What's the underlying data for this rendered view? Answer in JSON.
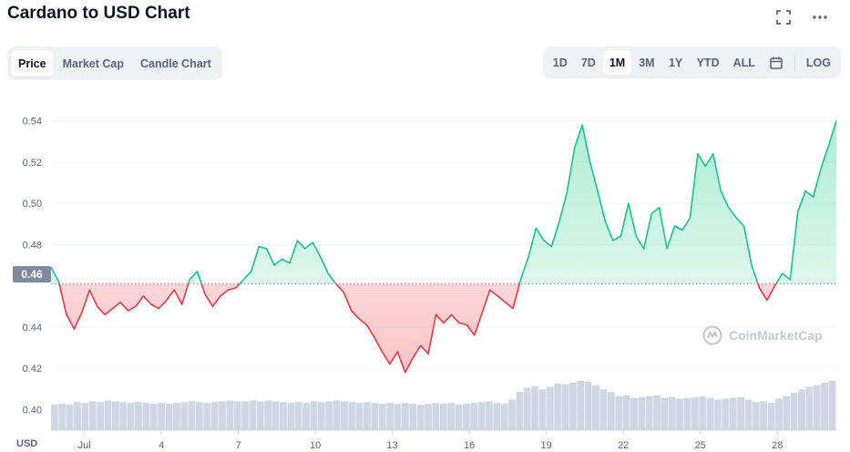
{
  "header": {
    "title": "Cardano to USD Chart",
    "fullscreen_icon": "expand-icon",
    "more_icon": "more-horizontal-icon"
  },
  "tabs": [
    {
      "label": "Price",
      "active": true
    },
    {
      "label": "Market Cap",
      "active": false
    },
    {
      "label": "Candle Chart",
      "active": false
    }
  ],
  "ranges": [
    {
      "label": "1D",
      "active": false
    },
    {
      "label": "7D",
      "active": false
    },
    {
      "label": "1M",
      "active": true
    },
    {
      "label": "3M",
      "active": false
    },
    {
      "label": "1Y",
      "active": false
    },
    {
      "label": "YTD",
      "active": false
    },
    {
      "label": "ALL",
      "active": false
    }
  ],
  "calendar_icon": "calendar-icon",
  "log_label": "LOG",
  "current_price_label": "0.46",
  "currency_label": "USD",
  "watermark": "CoinMarketCap",
  "colors": {
    "up": "#16c784",
    "down": "#ea3943",
    "volume": "#cfd6e4"
  },
  "chart_data": {
    "type": "line",
    "ylim": [
      0.39,
      0.55
    ],
    "yticks": [
      "0.54",
      "0.52",
      "0.50",
      "0.48",
      "0.46",
      "0.44",
      "0.42",
      "0.40"
    ],
    "ytick_values": [
      0.54,
      0.52,
      0.5,
      0.48,
      0.46,
      0.44,
      0.42,
      0.4
    ],
    "xticks": [
      "Jul",
      "4",
      "7",
      "10",
      "13",
      "16",
      "19",
      "22",
      "25",
      "28"
    ],
    "xtick_days": [
      1,
      4,
      7,
      10,
      13,
      16,
      19,
      22,
      25,
      28
    ],
    "xlim_days": [
      -0.3,
      30.3
    ],
    "baseline": 0.461,
    "series": [
      {
        "x": [
          -0.3,
          0,
          0.3,
          0.6,
          0.9,
          1.2,
          1.5,
          1.8,
          2.1,
          2.4,
          2.7,
          3.0,
          3.3,
          3.6,
          3.9,
          4.2,
          4.5,
          4.8,
          5.1,
          5.4,
          5.7,
          6.0,
          6.3,
          6.6,
          6.9,
          7.2,
          7.5,
          7.8,
          8.1,
          8.4,
          8.7,
          9.0,
          9.3,
          9.6,
          9.9,
          10.2,
          10.5,
          10.8,
          11.1,
          11.4,
          11.7,
          12.0,
          12.3,
          12.6,
          12.9,
          13.2,
          13.5,
          13.8,
          14.1,
          14.4,
          14.7,
          15.0,
          15.3,
          15.6,
          15.9,
          16.2,
          16.5,
          16.8,
          17.1,
          17.4,
          17.7,
          18.0,
          18.3,
          18.6,
          18.9,
          19.2,
          19.5,
          19.8,
          20.1,
          20.4,
          20.7,
          21.0,
          21.3,
          21.6,
          21.9,
          22.2,
          22.5,
          22.8,
          23.1,
          23.4,
          23.7,
          24.0,
          24.3,
          24.6,
          24.9,
          25.2,
          25.5,
          25.8,
          26.1,
          26.4,
          26.7,
          27.0,
          27.3,
          27.6,
          27.9,
          28.2,
          28.5,
          28.8,
          29.1,
          29.4,
          29.7,
          30.0,
          30.3
        ],
        "y": [
          0.469,
          0.462,
          0.446,
          0.439,
          0.447,
          0.458,
          0.45,
          0.446,
          0.449,
          0.452,
          0.448,
          0.45,
          0.455,
          0.451,
          0.449,
          0.453,
          0.458,
          0.451,
          0.463,
          0.467,
          0.456,
          0.45,
          0.455,
          0.458,
          0.459,
          0.463,
          0.467,
          0.479,
          0.478,
          0.47,
          0.473,
          0.471,
          0.482,
          0.478,
          0.481,
          0.474,
          0.466,
          0.461,
          0.457,
          0.448,
          0.444,
          0.441,
          0.435,
          0.428,
          0.422,
          0.428,
          0.418,
          0.425,
          0.431,
          0.427,
          0.446,
          0.442,
          0.446,
          0.442,
          0.441,
          0.436,
          0.447,
          0.458,
          0.455,
          0.452,
          0.449,
          0.463,
          0.474,
          0.488,
          0.482,
          0.479,
          0.491,
          0.505,
          0.527,
          0.538,
          0.52,
          0.506,
          0.491,
          0.482,
          0.484,
          0.5,
          0.484,
          0.478,
          0.495,
          0.498,
          0.478,
          0.489,
          0.487,
          0.493,
          0.524,
          0.518,
          0.524,
          0.506,
          0.498,
          0.493,
          0.489,
          0.47,
          0.459,
          0.453,
          0.46,
          0.466,
          0.463,
          0.496,
          0.506,
          0.503,
          0.517,
          0.528,
          0.54
        ]
      }
    ],
    "volume": [
      30,
      31,
      30,
      33,
      32,
      34,
      33,
      35,
      34,
      33,
      32,
      33,
      32,
      31,
      32,
      31,
      32,
      33,
      34,
      33,
      32,
      33,
      34,
      35,
      34,
      34,
      35,
      34,
      35,
      34,
      33,
      32,
      33,
      32,
      34,
      33,
      34,
      35,
      34,
      33,
      32,
      33,
      32,
      31,
      32,
      31,
      32,
      31,
      30,
      31,
      32,
      31,
      32,
      30,
      31,
      32,
      33,
      34,
      32,
      31,
      36,
      45,
      50,
      52,
      48,
      51,
      55,
      54,
      56,
      58,
      57,
      53,
      48,
      45,
      40,
      41,
      38,
      39,
      40,
      41,
      38,
      39,
      37,
      38,
      39,
      40,
      38,
      36,
      37,
      38,
      39,
      36,
      33,
      34,
      32,
      37,
      40,
      44,
      48,
      51,
      53,
      56,
      58
    ]
  }
}
